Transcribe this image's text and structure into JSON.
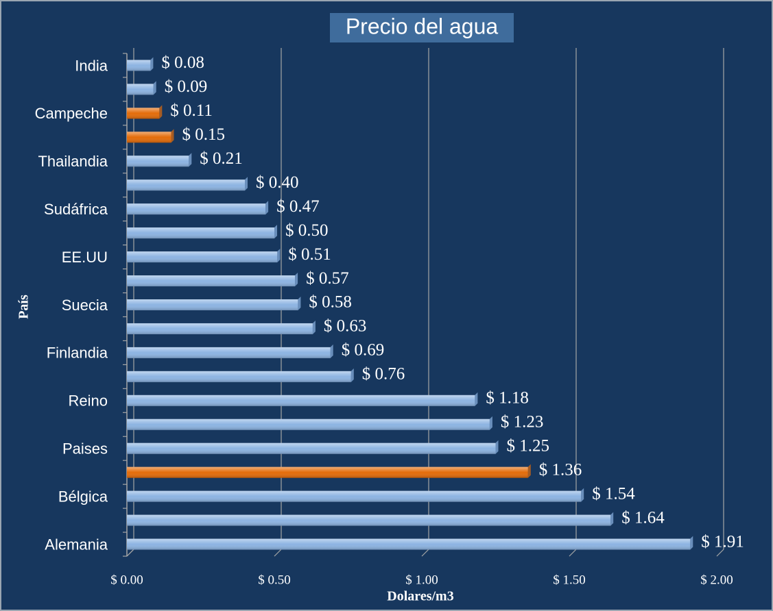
{
  "chart_data": {
    "type": "bar",
    "orientation": "horizontal",
    "title": "Precio del agua",
    "x_label": "Dolares/m3",
    "y_label": "País",
    "categories": [
      "India",
      null,
      "Campeche",
      null,
      "Thailandia",
      null,
      "Sudáfrica",
      null,
      "EE.UU",
      null,
      "Suecia",
      null,
      "Finlandia",
      null,
      "Reino",
      null,
      "Paises",
      null,
      "Bélgica",
      null,
      "Alemania"
    ],
    "values": [
      0.08,
      0.09,
      0.11,
      0.15,
      0.21,
      0.4,
      0.47,
      0.5,
      0.51,
      0.57,
      0.58,
      0.63,
      0.69,
      0.76,
      1.18,
      1.23,
      1.25,
      1.36,
      1.54,
      1.64,
      1.91
    ],
    "value_labels": [
      "$ 0.08",
      "$ 0.09",
      "$ 0.11",
      "$ 0.15",
      "$ 0.21",
      "$ 0.40",
      "$ 0.47",
      "$ 0.50",
      "$ 0.51",
      "$ 0.57",
      "$ 0.58",
      "$ 0.63",
      "$ 0.69",
      "$ 0.76",
      "$ 1.18",
      "$ 1.23",
      "$ 1.25",
      "$ 1.36",
      "$ 1.54",
      "$ 1.64",
      "$ 1.91"
    ],
    "colors": [
      "#8db4e2",
      "#8db4e2",
      "#e46c0a",
      "#e46c0a",
      "#8db4e2",
      "#8db4e2",
      "#8db4e2",
      "#8db4e2",
      "#8db4e2",
      "#8db4e2",
      "#8db4e2",
      "#8db4e2",
      "#8db4e2",
      "#8db4e2",
      "#8db4e2",
      "#8db4e2",
      "#8db4e2",
      "#e46c0a",
      "#8db4e2",
      "#8db4e2",
      "#8db4e2"
    ],
    "xlim": [
      0,
      2
    ],
    "xticks": [
      {
        "value": 0,
        "label": "$ 0.00"
      },
      {
        "value": 0.5,
        "label": "$ 0.50"
      },
      {
        "value": 1,
        "label": "$ 1.00"
      },
      {
        "value": 1.5,
        "label": "$ 1.50"
      },
      {
        "value": 2,
        "label": "$ 2.00"
      }
    ],
    "grid": true
  }
}
